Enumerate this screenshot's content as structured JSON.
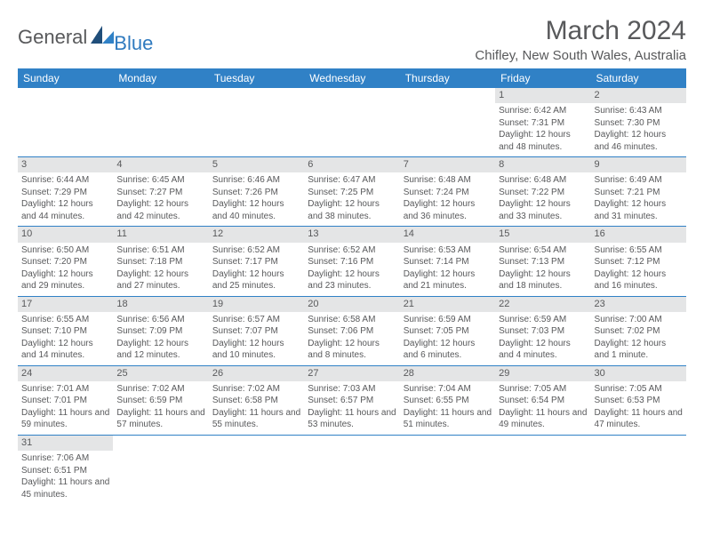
{
  "logo": {
    "general": "General",
    "blue": "Blue"
  },
  "title": "March 2024",
  "location": "Chifley, New South Wales, Australia",
  "colors": {
    "header_bg": "#3081c6",
    "header_text": "#ffffff",
    "daynum_bg": "#e4e5e6",
    "text": "#58595b",
    "logo_blue": "#2f7abf",
    "border": "#3081c6",
    "background": "#ffffff"
  },
  "weekdays": [
    "Sunday",
    "Monday",
    "Tuesday",
    "Wednesday",
    "Thursday",
    "Friday",
    "Saturday"
  ],
  "weeks": [
    [
      null,
      null,
      null,
      null,
      null,
      {
        "n": "1",
        "sr": "6:42 AM",
        "ss": "7:31 PM",
        "dl": "12 hours and 48 minutes."
      },
      {
        "n": "2",
        "sr": "6:43 AM",
        "ss": "7:30 PM",
        "dl": "12 hours and 46 minutes."
      }
    ],
    [
      {
        "n": "3",
        "sr": "6:44 AM",
        "ss": "7:29 PM",
        "dl": "12 hours and 44 minutes."
      },
      {
        "n": "4",
        "sr": "6:45 AM",
        "ss": "7:27 PM",
        "dl": "12 hours and 42 minutes."
      },
      {
        "n": "5",
        "sr": "6:46 AM",
        "ss": "7:26 PM",
        "dl": "12 hours and 40 minutes."
      },
      {
        "n": "6",
        "sr": "6:47 AM",
        "ss": "7:25 PM",
        "dl": "12 hours and 38 minutes."
      },
      {
        "n": "7",
        "sr": "6:48 AM",
        "ss": "7:24 PM",
        "dl": "12 hours and 36 minutes."
      },
      {
        "n": "8",
        "sr": "6:48 AM",
        "ss": "7:22 PM",
        "dl": "12 hours and 33 minutes."
      },
      {
        "n": "9",
        "sr": "6:49 AM",
        "ss": "7:21 PM",
        "dl": "12 hours and 31 minutes."
      }
    ],
    [
      {
        "n": "10",
        "sr": "6:50 AM",
        "ss": "7:20 PM",
        "dl": "12 hours and 29 minutes."
      },
      {
        "n": "11",
        "sr": "6:51 AM",
        "ss": "7:18 PM",
        "dl": "12 hours and 27 minutes."
      },
      {
        "n": "12",
        "sr": "6:52 AM",
        "ss": "7:17 PM",
        "dl": "12 hours and 25 minutes."
      },
      {
        "n": "13",
        "sr": "6:52 AM",
        "ss": "7:16 PM",
        "dl": "12 hours and 23 minutes."
      },
      {
        "n": "14",
        "sr": "6:53 AM",
        "ss": "7:14 PM",
        "dl": "12 hours and 21 minutes."
      },
      {
        "n": "15",
        "sr": "6:54 AM",
        "ss": "7:13 PM",
        "dl": "12 hours and 18 minutes."
      },
      {
        "n": "16",
        "sr": "6:55 AM",
        "ss": "7:12 PM",
        "dl": "12 hours and 16 minutes."
      }
    ],
    [
      {
        "n": "17",
        "sr": "6:55 AM",
        "ss": "7:10 PM",
        "dl": "12 hours and 14 minutes."
      },
      {
        "n": "18",
        "sr": "6:56 AM",
        "ss": "7:09 PM",
        "dl": "12 hours and 12 minutes."
      },
      {
        "n": "19",
        "sr": "6:57 AM",
        "ss": "7:07 PM",
        "dl": "12 hours and 10 minutes."
      },
      {
        "n": "20",
        "sr": "6:58 AM",
        "ss": "7:06 PM",
        "dl": "12 hours and 8 minutes."
      },
      {
        "n": "21",
        "sr": "6:59 AM",
        "ss": "7:05 PM",
        "dl": "12 hours and 6 minutes."
      },
      {
        "n": "22",
        "sr": "6:59 AM",
        "ss": "7:03 PM",
        "dl": "12 hours and 4 minutes."
      },
      {
        "n": "23",
        "sr": "7:00 AM",
        "ss": "7:02 PM",
        "dl": "12 hours and 1 minute."
      }
    ],
    [
      {
        "n": "24",
        "sr": "7:01 AM",
        "ss": "7:01 PM",
        "dl": "11 hours and 59 minutes."
      },
      {
        "n": "25",
        "sr": "7:02 AM",
        "ss": "6:59 PM",
        "dl": "11 hours and 57 minutes."
      },
      {
        "n": "26",
        "sr": "7:02 AM",
        "ss": "6:58 PM",
        "dl": "11 hours and 55 minutes."
      },
      {
        "n": "27",
        "sr": "7:03 AM",
        "ss": "6:57 PM",
        "dl": "11 hours and 53 minutes."
      },
      {
        "n": "28",
        "sr": "7:04 AM",
        "ss": "6:55 PM",
        "dl": "11 hours and 51 minutes."
      },
      {
        "n": "29",
        "sr": "7:05 AM",
        "ss": "6:54 PM",
        "dl": "11 hours and 49 minutes."
      },
      {
        "n": "30",
        "sr": "7:05 AM",
        "ss": "6:53 PM",
        "dl": "11 hours and 47 minutes."
      }
    ],
    [
      {
        "n": "31",
        "sr": "7:06 AM",
        "ss": "6:51 PM",
        "dl": "11 hours and 45 minutes."
      },
      null,
      null,
      null,
      null,
      null,
      null
    ]
  ],
  "labels": {
    "sunrise": "Sunrise:",
    "sunset": "Sunset:",
    "daylight": "Daylight:"
  }
}
